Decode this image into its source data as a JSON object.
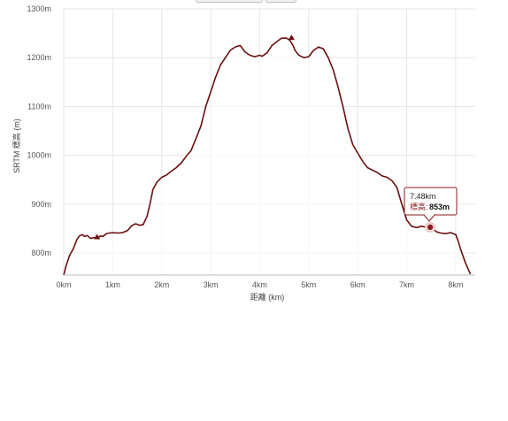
{
  "chart_data": {
    "type": "area",
    "xlabel": "距離 (km)",
    "ylabel": "SRTM 標高 (m)",
    "xlim": [
      0,
      8.4
    ],
    "ylim": [
      755,
      1300
    ],
    "grid": true,
    "x_ticks": [
      0,
      1,
      2,
      3,
      4,
      5,
      6,
      7,
      8
    ],
    "x_tick_labels": [
      "0km",
      "1km",
      "2km",
      "3km",
      "4km",
      "5km",
      "6km",
      "7km",
      "8km"
    ],
    "y_ticks": [
      800,
      900,
      1000,
      1100,
      1200,
      1300
    ],
    "y_tick_labels": [
      "800m",
      "900m",
      "1000m",
      "1100m",
      "1200m",
      "1300m"
    ],
    "series": [
      {
        "line_color": "#6b0f0f",
        "x": [
          0.0,
          0.05,
          0.12,
          0.2,
          0.27,
          0.32,
          0.38,
          0.42,
          0.48,
          0.55,
          0.62,
          0.68,
          0.75,
          0.8,
          0.87,
          0.93,
          1.0,
          1.1,
          1.2,
          1.3,
          1.4,
          1.47,
          1.55,
          1.62,
          1.7,
          1.76,
          1.82,
          1.9,
          2.0,
          2.1,
          2.2,
          2.3,
          2.4,
          2.5,
          2.6,
          2.7,
          2.8,
          2.9,
          3.0,
          3.1,
          3.2,
          3.3,
          3.4,
          3.5,
          3.6,
          3.7,
          3.8,
          3.9,
          4.0,
          4.05,
          4.15,
          4.25,
          4.35,
          4.45,
          4.55,
          4.62,
          4.68,
          4.72,
          4.8,
          4.9,
          5.0,
          5.1,
          5.2,
          5.3,
          5.4,
          5.5,
          5.6,
          5.7,
          5.8,
          5.9,
          6.0,
          6.1,
          6.2,
          6.3,
          6.4,
          6.5,
          6.6,
          6.7,
          6.8,
          6.9,
          7.0,
          7.1,
          7.2,
          7.3,
          7.4,
          7.48,
          7.55,
          7.62,
          7.7,
          7.8,
          7.9,
          8.0,
          8.05,
          8.1,
          8.2,
          8.3
        ],
        "y": [
          755,
          775,
          795,
          810,
          828,
          835,
          838,
          834,
          836,
          830,
          832,
          830,
          835,
          834,
          840,
          841,
          842,
          841,
          842,
          846,
          857,
          860,
          857,
          858,
          875,
          900,
          930,
          945,
          955,
          960,
          968,
          975,
          985,
          998,
          1010,
          1035,
          1060,
          1100,
          1130,
          1160,
          1185,
          1200,
          1215,
          1222,
          1225,
          1212,
          1205,
          1202,
          1205,
          1203,
          1210,
          1225,
          1233,
          1240,
          1240,
          1235,
          1225,
          1215,
          1205,
          1200,
          1202,
          1215,
          1222,
          1218,
          1200,
          1175,
          1140,
          1100,
          1055,
          1022,
          1005,
          988,
          975,
          970,
          965,
          958,
          955,
          948,
          935,
          900,
          868,
          855,
          852,
          855,
          853,
          853,
          848,
          843,
          841,
          840,
          842,
          838,
          825,
          808,
          780,
          757
        ]
      }
    ],
    "markers": [
      {
        "x": 0.68,
        "y": 832
      },
      {
        "x": 4.65,
        "y": 1240
      }
    ],
    "tooltip": {
      "x": 7.48,
      "y": 853,
      "distance_text": "7.48km",
      "label_text": "標高:",
      "value_text": "853m"
    }
  }
}
